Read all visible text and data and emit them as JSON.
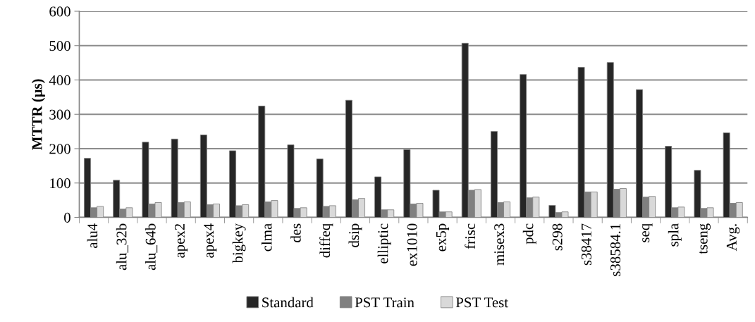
{
  "chart_data": {
    "type": "bar",
    "ylabel": "MTTR (μs)",
    "categories": [
      "alu4",
      "alu_32b",
      "alu_64b",
      "apex2",
      "apex4",
      "bigkey",
      "clma",
      "des",
      "diffeq",
      "dsip",
      "elliptic",
      "ex1010",
      "ex5p",
      "frisc",
      "misex3",
      "pdc",
      "s298",
      "s38417",
      "s38584.1",
      "seq",
      "spla",
      "tseng",
      "Avg."
    ],
    "series": [
      {
        "name": "Standard",
        "color": "#262626",
        "values": [
          172,
          108,
          219,
          228,
          240,
          194,
          324,
          211,
          170,
          341,
          118,
          197,
          79,
          507,
          250,
          416,
          35,
          437,
          451,
          372,
          207,
          137,
          246
        ]
      },
      {
        "name": "PST Train",
        "color": "#808080",
        "values": [
          28,
          24,
          39,
          43,
          37,
          34,
          45,
          26,
          32,
          51,
          22,
          39,
          16,
          79,
          43,
          57,
          14,
          74,
          82,
          59,
          28,
          26,
          41
        ]
      },
      {
        "name": "PST Test",
        "color": "#d9d9d9",
        "values": [
          32,
          28,
          43,
          45,
          39,
          37,
          49,
          28,
          34,
          55,
          22,
          41,
          16,
          81,
          45,
          59,
          16,
          74,
          84,
          61,
          30,
          28,
          43
        ]
      }
    ],
    "ylim": [
      0,
      600
    ],
    "yticks": [
      0,
      100,
      200,
      300,
      400,
      500,
      600
    ],
    "grid": "y",
    "legend": "bottom"
  }
}
